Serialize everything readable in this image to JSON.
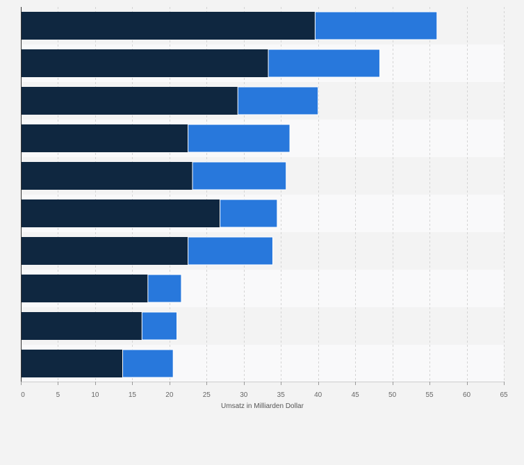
{
  "chart_data": {
    "type": "bar",
    "orientation": "horizontal",
    "stacked": true,
    "title": "",
    "xlabel": "Umsatz in Milliarden Dollar",
    "ylabel": "",
    "xlim": [
      0,
      65
    ],
    "xticks": [
      0,
      5,
      10,
      15,
      20,
      25,
      30,
      35,
      40,
      45,
      50,
      55,
      60,
      65
    ],
    "grid": "vertical dashed",
    "legend": "none",
    "series": [
      {
        "color": "#0f2740",
        "values": [
          39.6,
          33.3,
          29.2,
          22.5,
          23.1,
          26.8,
          22.5,
          17.1,
          16.3,
          13.7
        ]
      },
      {
        "color": "#2878dc",
        "values": [
          16.4,
          15.0,
          10.8,
          13.7,
          12.6,
          7.7,
          11.4,
          4.5,
          4.7,
          6.8
        ]
      }
    ]
  },
  "colors": {
    "background": "#f3f3f3",
    "band_light": "#f9f9fa",
    "band_dark": "#f3f3f3",
    "grid": "#d4d4d4",
    "axis": "#333333"
  }
}
